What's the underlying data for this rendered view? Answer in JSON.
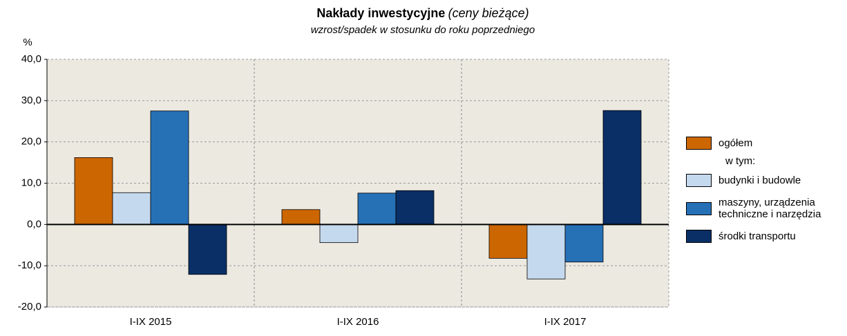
{
  "chart_data": {
    "type": "bar",
    "title": "Nakłady inwestycyjne",
    "title_note": "(ceny bieżące)",
    "subtitle": "wzrost/spadek w stosunku do roku poprzedniego",
    "y_label": "%",
    "legend_note": "w tym:",
    "categories": [
      "I-IX 2015",
      "I-IX 2016",
      "I-IX 2017"
    ],
    "series": [
      {
        "name": "ogółem",
        "color": "#cc6600",
        "values": [
          16.2,
          3.6,
          -8.2
        ]
      },
      {
        "name": "budynki i budowle",
        "color": "#c5d9ee",
        "values": [
          7.7,
          -4.4,
          -13.2
        ]
      },
      {
        "name": "maszyny, urządzenia techniczne i narzędzia",
        "color": "#2670b6",
        "values": [
          27.5,
          7.6,
          -9.1
        ]
      },
      {
        "name": "środki transportu",
        "color": "#0a2f66",
        "values": [
          -12.1,
          8.2,
          27.6
        ]
      }
    ],
    "ylim": [
      -20,
      40
    ],
    "yticks": [
      {
        "value": -20,
        "label": "-20,0"
      },
      {
        "value": -10,
        "label": "-10,0"
      },
      {
        "value": 0,
        "label": "0,0"
      },
      {
        "value": 10,
        "label": "10,0"
      },
      {
        "value": 20,
        "label": "20,0"
      },
      {
        "value": 30,
        "label": "30,0"
      },
      {
        "value": 40,
        "label": "40,0"
      }
    ],
    "grid": true,
    "legend": "right"
  }
}
